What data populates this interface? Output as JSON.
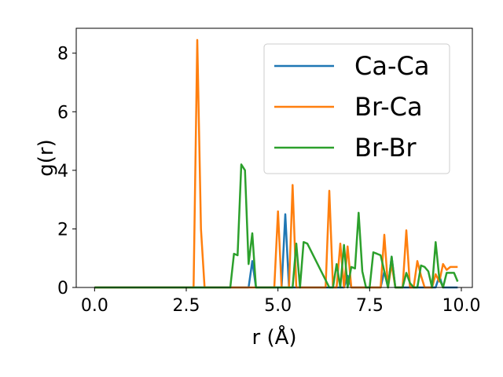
{
  "chart_data": {
    "type": "line",
    "title": "",
    "xlabel": "r (Å)",
    "ylabel": "g(r)",
    "xlim": [
      -0.5,
      10.3
    ],
    "ylim": [
      0,
      8.85
    ],
    "xticks": [
      0.0,
      2.5,
      5.0,
      7.5,
      10.0
    ],
    "xtick_labels": [
      "0.0",
      "2.5",
      "5.0",
      "7.5",
      "10.0"
    ],
    "yticks": [
      0,
      2,
      4,
      6,
      8
    ],
    "ytick_labels": [
      "0",
      "2",
      "4",
      "6",
      "8"
    ],
    "grid": false,
    "legend_position": "top-right",
    "series": [
      {
        "name": "Ca-Ca",
        "color": "#1f77b4",
        "x": [
          0,
          4.2,
          4.3,
          4.4,
          5.1,
          5.2,
          5.3,
          6.8,
          6.9,
          7.0,
          7.8,
          7.9,
          8.0,
          8.1,
          8.2,
          9.3,
          9.4,
          9.5,
          9.9
        ],
        "y": [
          0,
          0,
          0.9,
          0,
          0,
          2.5,
          0,
          0,
          0.4,
          0,
          0,
          0.55,
          0,
          1.05,
          0,
          0,
          0.4,
          0,
          0
        ]
      },
      {
        "name": "Br-Ca",
        "color": "#ff7f0e",
        "x": [
          0,
          2.7,
          2.8,
          2.9,
          3.0,
          4.9,
          5.0,
          5.1,
          5.2,
          5.3,
          5.4,
          5.5,
          6.3,
          6.4,
          6.5,
          6.6,
          6.7,
          6.8,
          6.9,
          7.0,
          7.8,
          7.9,
          8.0,
          8.1,
          8.2,
          8.4,
          8.5,
          8.6,
          8.7,
          8.8,
          8.9,
          9.0,
          9.2,
          9.3,
          9.4,
          9.5,
          9.6,
          9.7,
          9.8,
          9.9
        ],
        "y": [
          0,
          0,
          8.45,
          2.0,
          0,
          0,
          2.6,
          0,
          0,
          0,
          3.5,
          0,
          0,
          3.3,
          0,
          0,
          1.5,
          0,
          1.4,
          0,
          0,
          1.8,
          0,
          0.8,
          0,
          0,
          1.95,
          0,
          0,
          0.9,
          0.4,
          0,
          0,
          0.45,
          0.2,
          0.8,
          0.6,
          0.7,
          0.7,
          0.7
        ]
      },
      {
        "name": "Br-Br",
        "color": "#2ca02c",
        "x": [
          0,
          3.7,
          3.8,
          3.9,
          4.0,
          4.1,
          4.2,
          4.3,
          4.4,
          5.4,
          5.5,
          5.6,
          5.7,
          5.8,
          6.4,
          6.5,
          6.6,
          6.7,
          6.8,
          6.9,
          7.0,
          7.1,
          7.2,
          7.3,
          7.4,
          7.5,
          7.6,
          7.7,
          7.8,
          8.0,
          8.1,
          8.2,
          8.3,
          8.4,
          8.5,
          8.6,
          8.7,
          8.8,
          8.9,
          9.0,
          9.1,
          9.2,
          9.3,
          9.4,
          9.5,
          9.6,
          9.7,
          9.8,
          9.9
        ],
        "y": [
          0,
          0,
          1.15,
          1.1,
          4.2,
          4.0,
          0.8,
          1.85,
          0,
          0,
          1.5,
          0,
          1.55,
          1.5,
          0,
          0,
          0.8,
          0,
          1.45,
          0,
          0.7,
          0.65,
          2.55,
          0.55,
          0,
          0,
          1.2,
          1.15,
          1.1,
          0,
          1.05,
          0,
          0,
          0,
          0.5,
          0.15,
          0,
          0,
          0.75,
          0.7,
          0.55,
          0,
          1.55,
          0.3,
          0,
          0.5,
          0.5,
          0.5,
          0.2
        ]
      }
    ]
  }
}
